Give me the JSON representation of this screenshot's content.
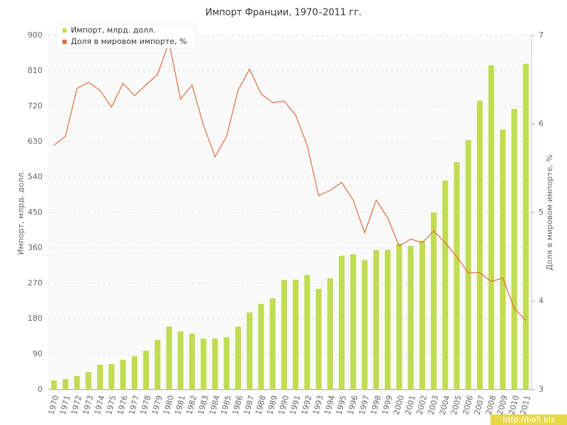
{
  "chart_data": {
    "type": "bar-line",
    "title": "Импорт Франции, 1970–2011 гг.",
    "y_label": "Импорт, млрд. долл.",
    "y2_label": "Доля в мировом импорте, %",
    "watermark": "http://be5.biz",
    "categories": [
      "1970",
      "1971",
      "1972",
      "1973",
      "1974",
      "1975",
      "1976",
      "1977",
      "1978",
      "1979",
      "1980",
      "1981",
      "1982",
      "1983",
      "1984",
      "1985",
      "1986",
      "1987",
      "1988",
      "1989",
      "1990",
      "1991",
      "1992",
      "1993",
      "1994",
      "1995",
      "1996",
      "1997",
      "1998",
      "1999",
      "2000",
      "2001",
      "2002",
      "2003",
      "2004",
      "2005",
      "2006",
      "2007",
      "2008",
      "2009",
      "2010",
      "2011"
    ],
    "series": [
      {
        "name": "Импорт, млрд. долл.",
        "color": "#c2dc52",
        "kind": "bar",
        "values": [
          23,
          27,
          34,
          45,
          63,
          65,
          76,
          85,
          99,
          126,
          160,
          148,
          142,
          130,
          130,
          133,
          160,
          196,
          218,
          232,
          279,
          279,
          291,
          256,
          283,
          340,
          344,
          329,
          355,
          355,
          371,
          365,
          378,
          450,
          531,
          578,
          634,
          734,
          824,
          661,
          713,
          828
        ]
      },
      {
        "name": "Доля в мировом импорте, %",
        "color": "#e06c3a",
        "kind": "line",
        "axis": "y2",
        "values": [
          5.76,
          5.86,
          6.4,
          6.47,
          6.38,
          6.19,
          6.46,
          6.32,
          6.44,
          6.56,
          6.92,
          6.28,
          6.44,
          5.98,
          5.63,
          5.86,
          6.38,
          6.62,
          6.34,
          6.24,
          6.26,
          6.1,
          5.76,
          5.19,
          5.25,
          5.34,
          5.14,
          4.77,
          5.14,
          4.94,
          4.62,
          4.7,
          4.66,
          4.79,
          4.66,
          4.5,
          4.32,
          4.32,
          4.22,
          4.26,
          3.92,
          3.78
        ]
      }
    ],
    "ylim": [
      0,
      900
    ],
    "yticks": [
      0,
      90,
      180,
      270,
      360,
      450,
      540,
      630,
      720,
      810,
      900
    ],
    "y2lim": [
      3,
      7
    ],
    "y2ticks": [
      3,
      4,
      5,
      6,
      7
    ],
    "grid": true,
    "legend": "top-left"
  }
}
